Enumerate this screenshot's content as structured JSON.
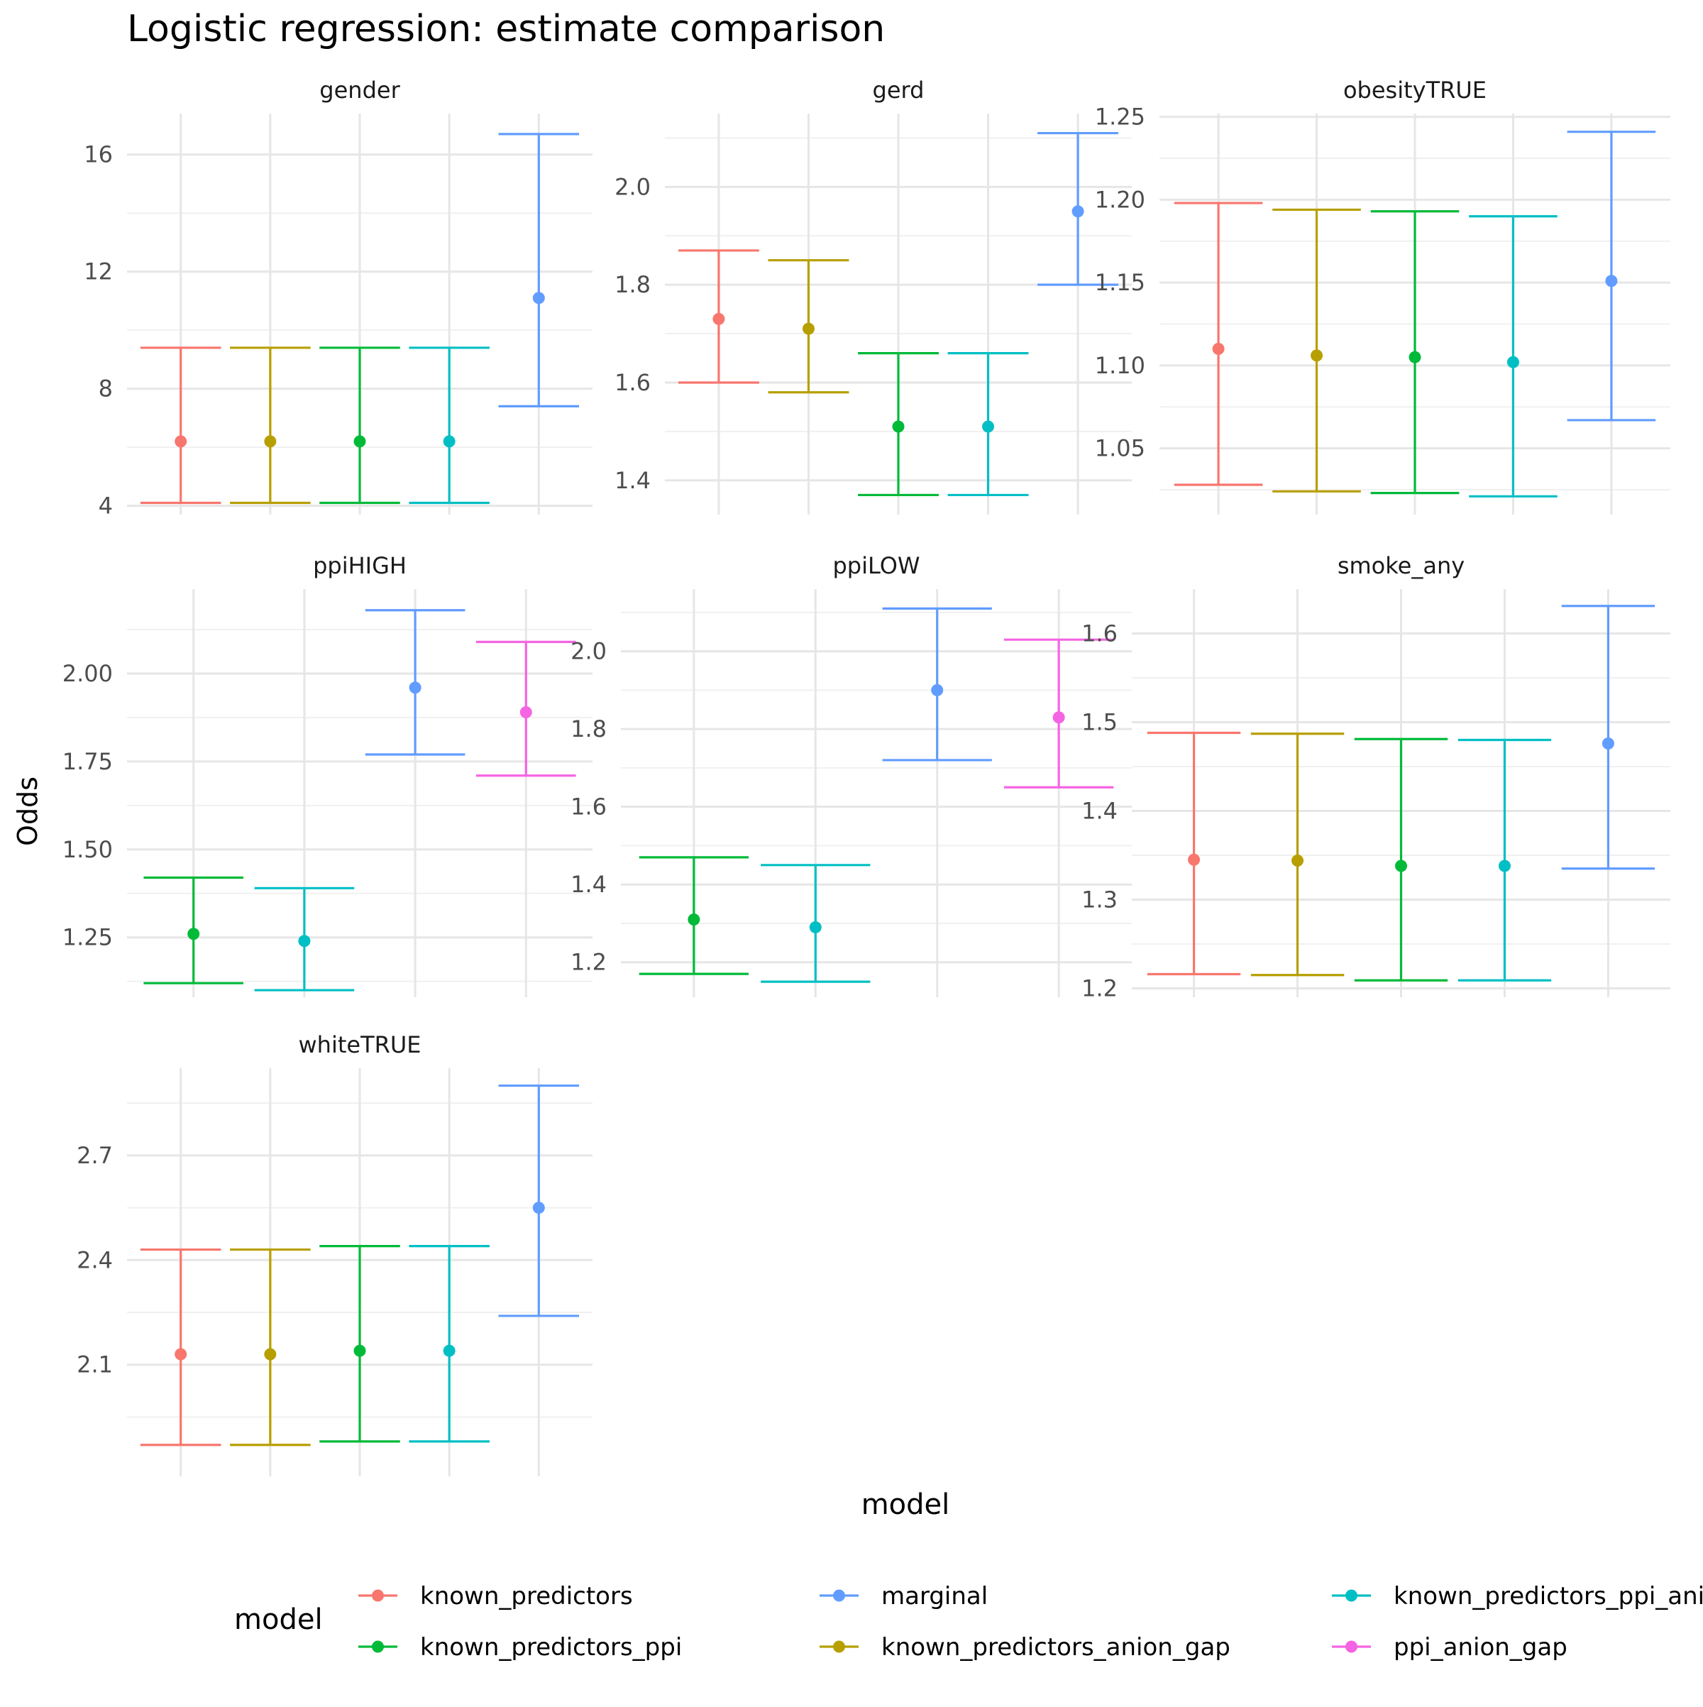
{
  "chart_data": {
    "type": "errorbar",
    "title": "Logistic regression: estimate comparison",
    "xlabel": "model",
    "ylabel": "Odds",
    "legend": {
      "title": "model",
      "position": "bottom",
      "entries": [
        {
          "name": "known_predictors",
          "color": "#F8766D"
        },
        {
          "name": "known_predictors_ppi",
          "color": "#00BA38"
        },
        {
          "name": "marginal",
          "color": "#619CFF"
        },
        {
          "name": "known_predictors_anion_gap",
          "color": "#B79F00"
        },
        {
          "name": "known_predictors_ppi_anion_gap",
          "color": "#00BFC4"
        },
        {
          "name": "ppi_anion_gap",
          "color": "#F564E3"
        }
      ]
    },
    "grid": true,
    "facets": [
      {
        "name": "gender",
        "ylim": [
          3.7,
          17.4
        ],
        "yticks": [
          {
            "value": 4,
            "label": "4"
          },
          {
            "value": 8,
            "label": "8"
          },
          {
            "value": 12,
            "label": "12"
          },
          {
            "value": 16,
            "label": "16"
          }
        ],
        "series": [
          {
            "model": "known_predictors",
            "estimate": 6.2,
            "lower": 4.1,
            "upper": 9.4
          },
          {
            "model": "known_predictors_anion_gap",
            "estimate": 6.2,
            "lower": 4.1,
            "upper": 9.4
          },
          {
            "model": "known_predictors_ppi",
            "estimate": 6.2,
            "lower": 4.1,
            "upper": 9.4
          },
          {
            "model": "known_predictors_ppi_anion_gap",
            "estimate": 6.2,
            "lower": 4.1,
            "upper": 9.4
          },
          {
            "model": "marginal",
            "estimate": 11.1,
            "lower": 7.4,
            "upper": 16.7
          }
        ]
      },
      {
        "name": "gerd",
        "ylim": [
          1.33,
          2.15
        ],
        "yticks": [
          {
            "value": 1.4,
            "label": "1.4"
          },
          {
            "value": 1.6,
            "label": "1.6"
          },
          {
            "value": 1.8,
            "label": "1.8"
          },
          {
            "value": 2.0,
            "label": "2.0"
          }
        ],
        "series": [
          {
            "model": "known_predictors",
            "estimate": 1.73,
            "lower": 1.6,
            "upper": 1.87
          },
          {
            "model": "known_predictors_anion_gap",
            "estimate": 1.71,
            "lower": 1.58,
            "upper": 1.85
          },
          {
            "model": "known_predictors_ppi",
            "estimate": 1.51,
            "lower": 1.37,
            "upper": 1.66
          },
          {
            "model": "known_predictors_ppi_anion_gap",
            "estimate": 1.51,
            "lower": 1.37,
            "upper": 1.66
          },
          {
            "model": "marginal",
            "estimate": 1.95,
            "lower": 1.8,
            "upper": 2.11
          }
        ]
      },
      {
        "name": "obesityTRUE",
        "ylim": [
          1.01,
          1.252
        ],
        "yticks": [
          {
            "value": 1.05,
            "label": "1.05"
          },
          {
            "value": 1.1,
            "label": "1.10"
          },
          {
            "value": 1.15,
            "label": "1.15"
          },
          {
            "value": 1.2,
            "label": "1.20"
          },
          {
            "value": 1.25,
            "label": "1.25"
          }
        ],
        "series": [
          {
            "model": "known_predictors",
            "estimate": 1.11,
            "lower": 1.028,
            "upper": 1.198
          },
          {
            "model": "known_predictors_anion_gap",
            "estimate": 1.106,
            "lower": 1.024,
            "upper": 1.194
          },
          {
            "model": "known_predictors_ppi",
            "estimate": 1.105,
            "lower": 1.023,
            "upper": 1.193
          },
          {
            "model": "known_predictors_ppi_anion_gap",
            "estimate": 1.102,
            "lower": 1.021,
            "upper": 1.19
          },
          {
            "model": "marginal",
            "estimate": 1.151,
            "lower": 1.067,
            "upper": 1.241
          }
        ]
      },
      {
        "name": "ppiHIGH",
        "ylim": [
          1.08,
          2.24
        ],
        "yticks": [
          {
            "value": 1.25,
            "label": "1.25"
          },
          {
            "value": 1.5,
            "label": "1.50"
          },
          {
            "value": 1.75,
            "label": "1.75"
          },
          {
            "value": 2.0,
            "label": "2.00"
          }
        ],
        "series": [
          {
            "model": "known_predictors_ppi",
            "estimate": 1.26,
            "lower": 1.12,
            "upper": 1.42
          },
          {
            "model": "known_predictors_ppi_anion_gap",
            "estimate": 1.24,
            "lower": 1.1,
            "upper": 1.39
          },
          {
            "model": "marginal",
            "estimate": 1.96,
            "lower": 1.77,
            "upper": 2.18
          },
          {
            "model": "ppi_anion_gap",
            "estimate": 1.89,
            "lower": 1.71,
            "upper": 2.09
          }
        ]
      },
      {
        "name": "ppiLOW",
        "ylim": [
          1.11,
          2.16
        ],
        "yticks": [
          {
            "value": 1.2,
            "label": "1.2"
          },
          {
            "value": 1.4,
            "label": "1.4"
          },
          {
            "value": 1.6,
            "label": "1.6"
          },
          {
            "value": 1.8,
            "label": "1.8"
          },
          {
            "value": 2.0,
            "label": "2.0"
          }
        ],
        "series": [
          {
            "model": "known_predictors_ppi",
            "estimate": 1.31,
            "lower": 1.17,
            "upper": 1.47
          },
          {
            "model": "known_predictors_ppi_anion_gap",
            "estimate": 1.29,
            "lower": 1.15,
            "upper": 1.45
          },
          {
            "model": "marginal",
            "estimate": 1.9,
            "lower": 1.72,
            "upper": 2.11
          },
          {
            "model": "ppi_anion_gap",
            "estimate": 1.83,
            "lower": 1.65,
            "upper": 2.03
          }
        ]
      },
      {
        "name": "smoke_any",
        "ylim": [
          1.19,
          1.65
        ],
        "yticks": [
          {
            "value": 1.2,
            "label": "1.2"
          },
          {
            "value": 1.3,
            "label": "1.3"
          },
          {
            "value": 1.4,
            "label": "1.4"
          },
          {
            "value": 1.5,
            "label": "1.5"
          },
          {
            "value": 1.6,
            "label": "1.6"
          }
        ],
        "series": [
          {
            "model": "known_predictors",
            "estimate": 1.345,
            "lower": 1.216,
            "upper": 1.488
          },
          {
            "model": "known_predictors_anion_gap",
            "estimate": 1.344,
            "lower": 1.215,
            "upper": 1.487
          },
          {
            "model": "known_predictors_ppi",
            "estimate": 1.338,
            "lower": 1.209,
            "upper": 1.481
          },
          {
            "model": "known_predictors_ppi_anion_gap",
            "estimate": 1.338,
            "lower": 1.209,
            "upper": 1.48
          },
          {
            "model": "marginal",
            "estimate": 1.476,
            "lower": 1.335,
            "upper": 1.631
          }
        ]
      },
      {
        "name": "whiteTRUE",
        "ylim": [
          1.78,
          2.95
        ],
        "yticks": [
          {
            "value": 2.1,
            "label": "2.1"
          },
          {
            "value": 2.4,
            "label": "2.4"
          },
          {
            "value": 2.7,
            "label": "2.7"
          }
        ],
        "series": [
          {
            "model": "known_predictors",
            "estimate": 2.13,
            "lower": 1.87,
            "upper": 2.43
          },
          {
            "model": "known_predictors_anion_gap",
            "estimate": 2.13,
            "lower": 1.87,
            "upper": 2.43
          },
          {
            "model": "known_predictors_ppi",
            "estimate": 2.14,
            "lower": 1.88,
            "upper": 2.44
          },
          {
            "model": "known_predictors_ppi_anion_gap",
            "estimate": 2.14,
            "lower": 1.88,
            "upper": 2.44
          },
          {
            "model": "marginal",
            "estimate": 2.55,
            "lower": 2.24,
            "upper": 2.9
          }
        ]
      }
    ]
  }
}
